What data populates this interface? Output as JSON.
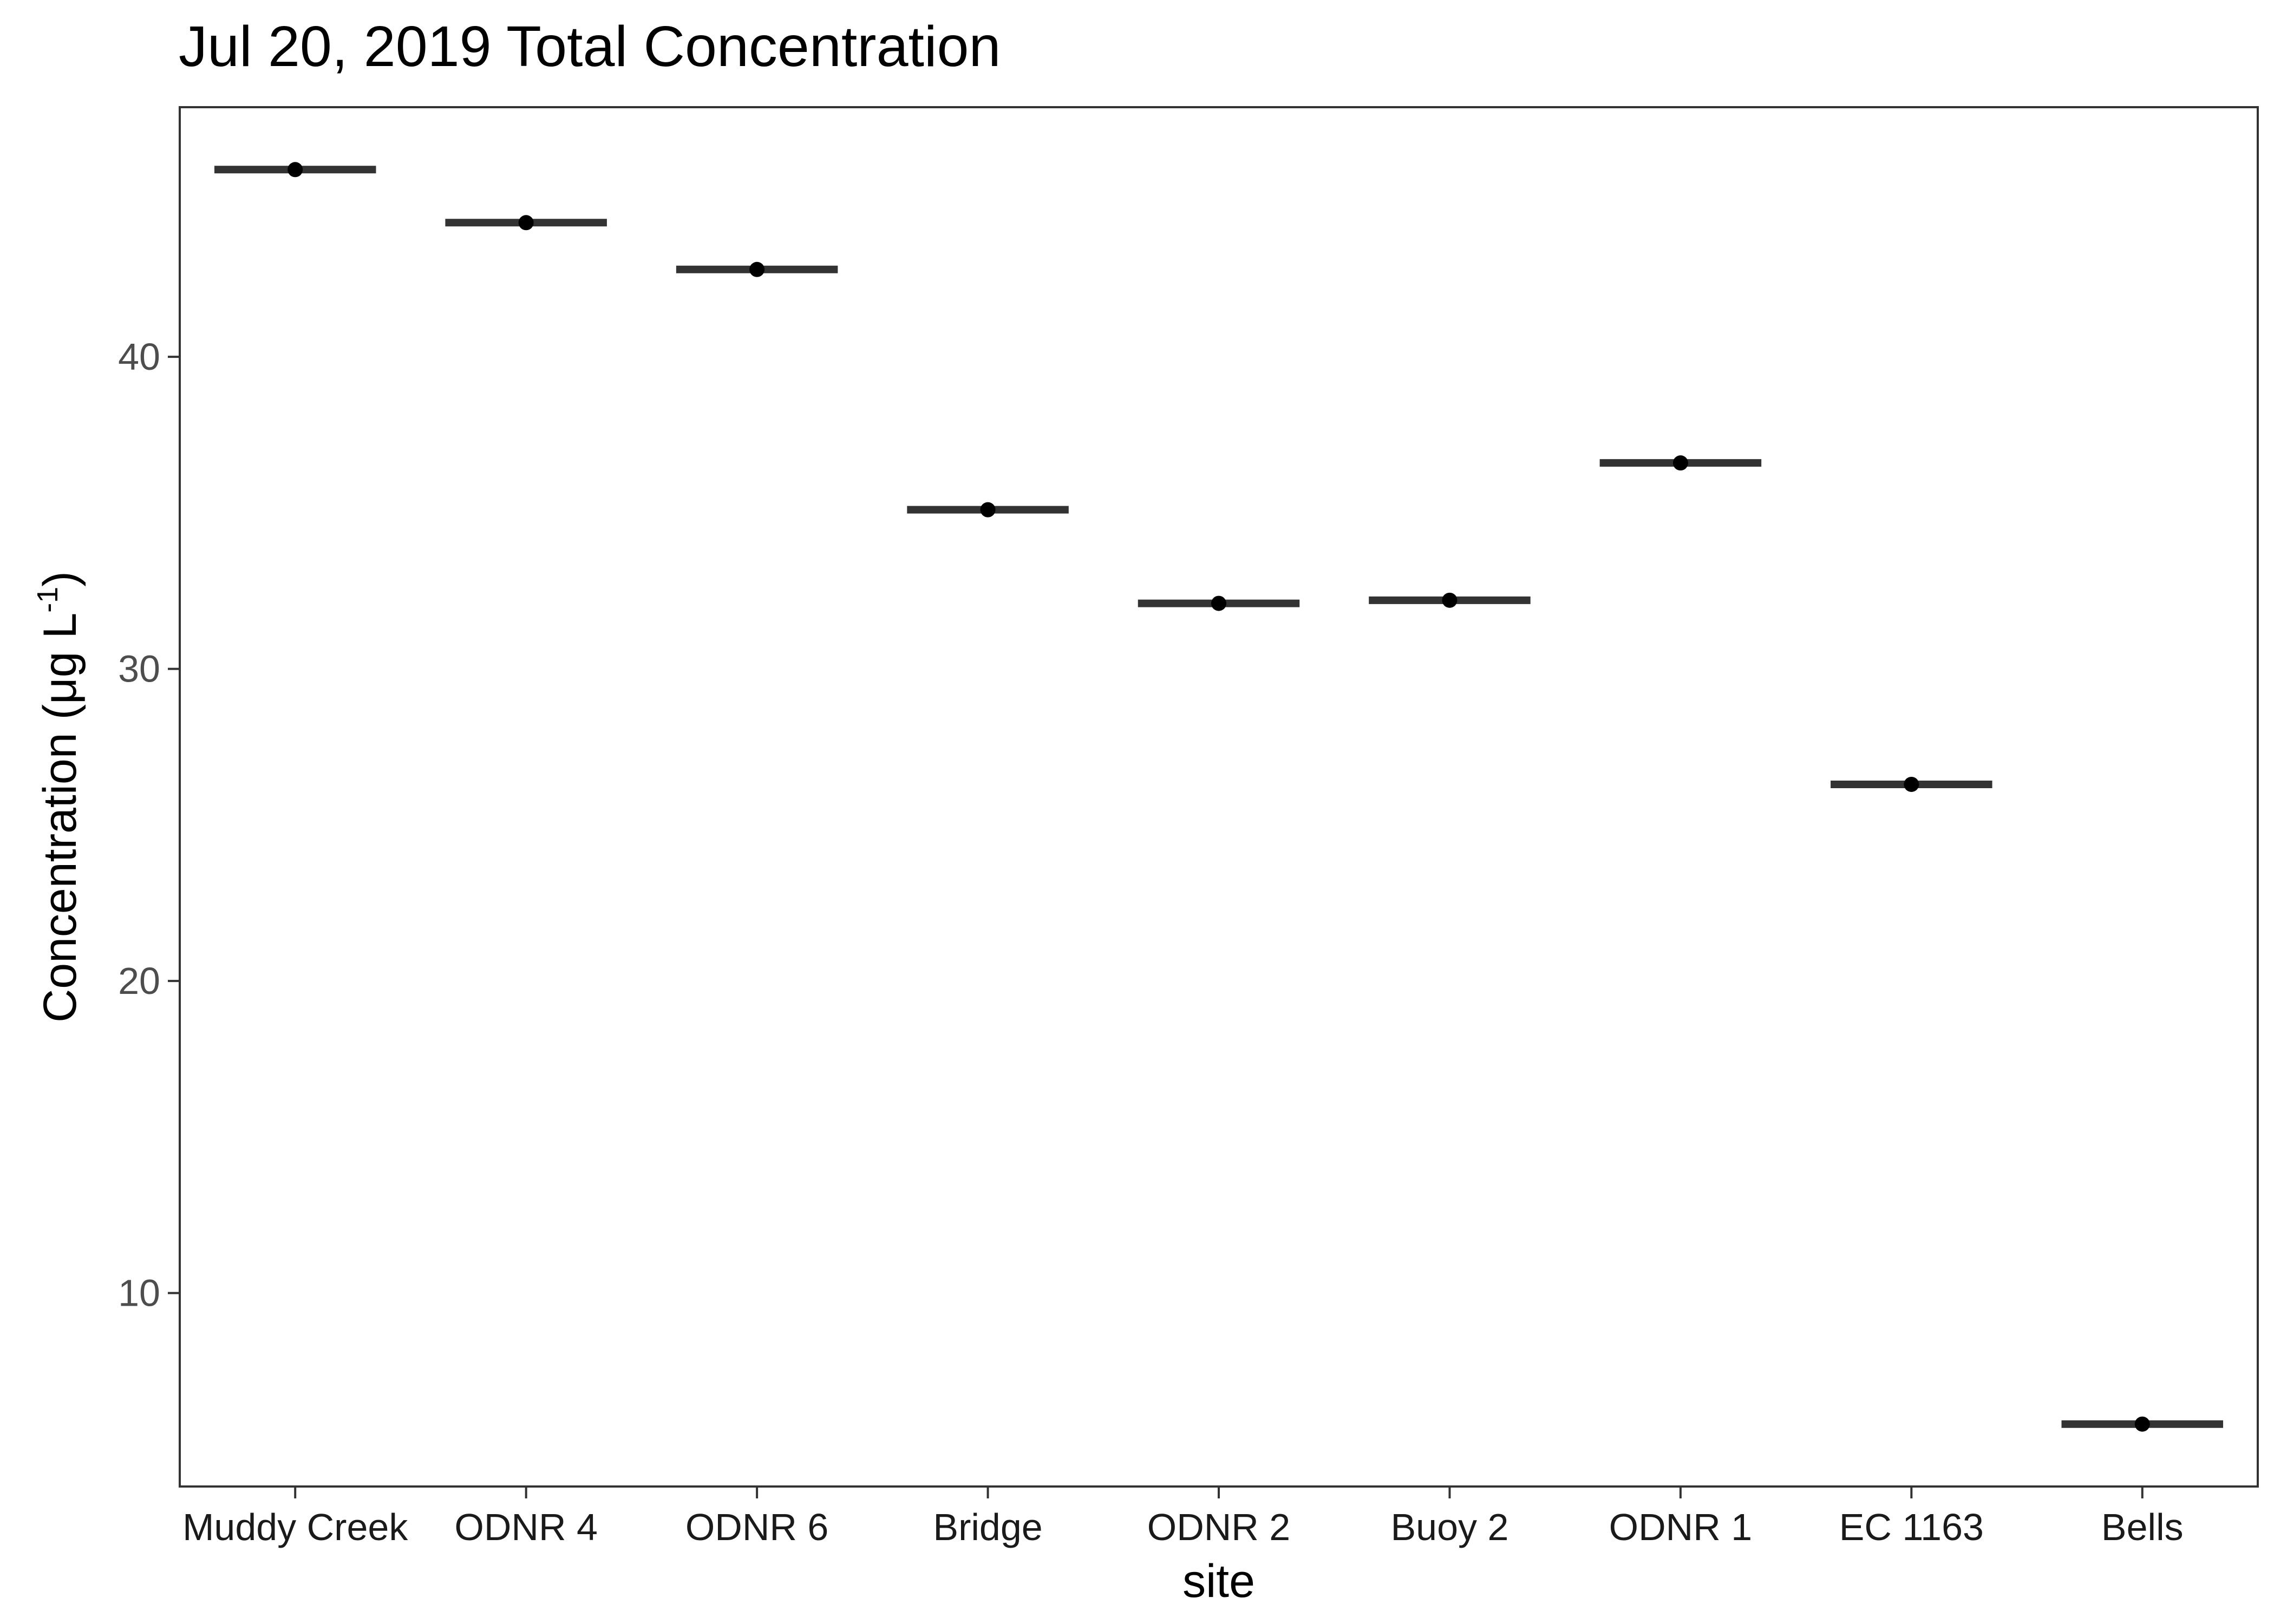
{
  "chart_data": {
    "type": "scatter",
    "title": "Jul 20, 2019 Total Concentration",
    "xlabel": "site",
    "ylabel": "Concentration (μg L⁻¹)",
    "ylabel_main": "Concentration (μg L",
    "ylabel_sup": "-1",
    "ylabel_close": ")",
    "categories": [
      "Muddy Creek",
      "ODNR 4",
      "ODNR 6",
      "Bridge",
      "ODNR 2",
      "Buoy 2",
      "ODNR 1",
      "EC 1163",
      "Bells"
    ],
    "values": [
      46.0,
      44.3,
      42.8,
      35.1,
      32.1,
      32.2,
      36.6,
      26.3,
      5.8
    ],
    "yticks": [
      10,
      20,
      30,
      40
    ],
    "ylim": [
      3.8,
      48.0
    ],
    "grid": false,
    "legend": "none",
    "colors": {
      "bar": "#333333",
      "point": "#000000",
      "frame": "#333333",
      "tick_text": "#4d4d4d"
    }
  }
}
